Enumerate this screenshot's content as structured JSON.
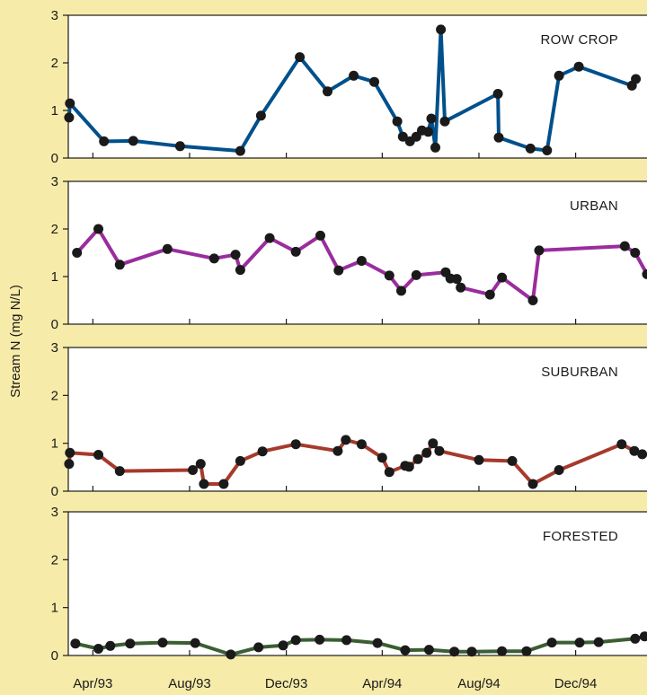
{
  "chart_data": {
    "type": "line",
    "ylabel": "Stream N (mg N/L)",
    "x_tick_labels": [
      "Apr/93",
      "Aug/93",
      "Dec/93",
      "Apr/94",
      "Aug/94",
      "Dec/94"
    ],
    "x_ticks": [
      "1993-04-01",
      "1993-08-01",
      "1993-12-01",
      "1994-04-01",
      "1994-08-01",
      "1994-12-01"
    ],
    "xlim": [
      "1993-03-01",
      "1995-03-01"
    ],
    "ylim": [
      0,
      3
    ],
    "y_ticks": [
      0,
      1,
      2,
      3
    ],
    "grid": false,
    "panels": [
      {
        "label": "ROW CROP",
        "color": "#00508c",
        "series": {
          "x": [
            "1993-03-02",
            "1993-03-03",
            "1993-04-15",
            "1993-05-22",
            "1993-07-20",
            "1993-10-04",
            "1993-10-30",
            "1993-12-18",
            "1994-01-22",
            "1994-02-24",
            "1994-03-22",
            "1994-04-20",
            "1994-04-27",
            "1994-05-06",
            "1994-05-14",
            "1994-05-21",
            "1994-05-29",
            "1994-06-02",
            "1994-06-07",
            "1994-06-14",
            "1994-06-19",
            "1994-08-25",
            "1994-08-26",
            "1994-10-05",
            "1994-10-26",
            "1994-11-10",
            "1994-12-05",
            "1995-02-10",
            "1995-02-15"
          ],
          "y": [
            0.85,
            1.15,
            0.35,
            0.36,
            0.25,
            0.15,
            0.89,
            2.12,
            1.4,
            1.73,
            1.6,
            0.77,
            0.45,
            0.35,
            0.45,
            0.58,
            0.55,
            0.83,
            0.22,
            2.7,
            0.77,
            1.35,
            0.43,
            0.2,
            0.16,
            1.73,
            1.92,
            1.52,
            1.66
          ]
        }
      },
      {
        "label": "URBAN",
        "color": "#9a2d9e",
        "series": {
          "x": [
            "1993-03-12",
            "1993-04-08",
            "1993-05-05",
            "1993-07-04",
            "1993-09-01",
            "1993-09-28",
            "1993-10-04",
            "1993-11-10",
            "1993-12-13",
            "1994-01-13",
            "1994-02-05",
            "1994-03-06",
            "1994-04-10",
            "1994-04-25",
            "1994-05-14",
            "1994-06-20",
            "1994-06-26",
            "1994-07-04",
            "1994-07-09",
            "1994-08-15",
            "1994-08-30",
            "1994-10-08",
            "1994-10-16",
            "1995-02-01",
            "1995-02-14",
            "1995-03-01"
          ],
          "y": [
            1.5,
            2.0,
            1.25,
            1.58,
            1.38,
            1.46,
            1.14,
            1.81,
            1.52,
            1.86,
            1.13,
            1.33,
            1.02,
            0.7,
            1.03,
            1.09,
            0.96,
            0.95,
            0.77,
            0.62,
            0.98,
            0.5,
            1.55,
            1.64,
            1.5,
            1.05
          ]
        }
      },
      {
        "label": "SUBURBAN",
        "color": "#a63a2c",
        "series": {
          "x": [
            "1993-03-02",
            "1993-03-03",
            "1993-04-08",
            "1993-05-05",
            "1993-08-05",
            "1993-08-15",
            "1993-08-19",
            "1993-09-13",
            "1993-10-04",
            "1993-11-01",
            "1993-12-13",
            "1994-02-04",
            "1994-02-14",
            "1994-03-06",
            "1994-04-01",
            "1994-04-10",
            "1994-04-30",
            "1994-05-05",
            "1994-05-16",
            "1994-05-27",
            "1994-06-04",
            "1994-06-12",
            "1994-08-01",
            "1994-09-12",
            "1994-10-08",
            "1994-11-10",
            "1995-01-28",
            "1995-02-13",
            "1995-02-23"
          ],
          "y": [
            0.57,
            0.8,
            0.76,
            0.42,
            0.44,
            0.57,
            0.15,
            0.15,
            0.63,
            0.83,
            0.98,
            0.84,
            1.07,
            0.98,
            0.7,
            0.4,
            0.53,
            0.51,
            0.67,
            0.8,
            1.0,
            0.84,
            0.65,
            0.63,
            0.15,
            0.44,
            0.98,
            0.84,
            0.77
          ]
        }
      },
      {
        "label": "FORESTED",
        "color": "#3b5e33",
        "series": {
          "x": [
            "1993-03-10",
            "1993-04-08",
            "1993-04-23",
            "1993-05-18",
            "1993-06-28",
            "1993-08-08",
            "1993-09-22",
            "1993-10-27",
            "1993-11-27",
            "1993-12-13",
            "1994-01-12",
            "1994-02-15",
            "1994-03-26",
            "1994-04-30",
            "1994-05-30",
            "1994-07-01",
            "1994-07-23",
            "1994-08-30",
            "1994-09-30",
            "1994-11-01",
            "1994-12-06",
            "1994-12-30",
            "1995-02-14",
            "1995-02-26"
          ],
          "y": [
            0.25,
            0.14,
            0.2,
            0.25,
            0.27,
            0.26,
            0.02,
            0.17,
            0.21,
            0.32,
            0.33,
            0.32,
            0.26,
            0.11,
            0.12,
            0.08,
            0.08,
            0.09,
            0.09,
            0.27,
            0.27,
            0.28,
            0.35,
            0.4
          ]
        }
      }
    ]
  }
}
